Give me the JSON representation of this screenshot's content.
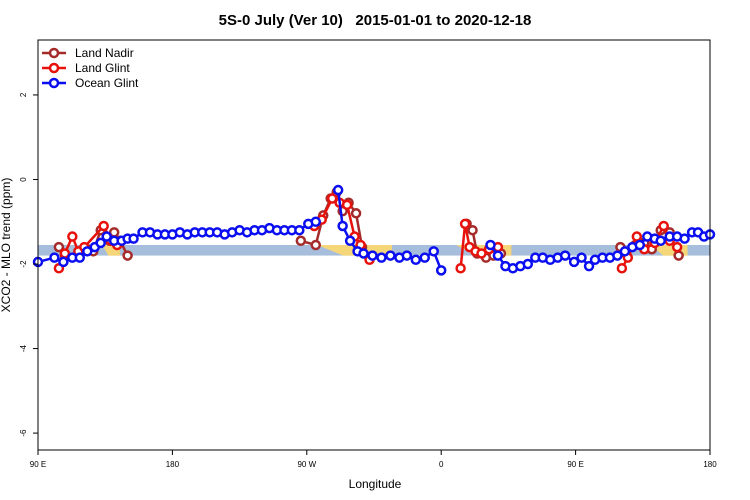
{
  "chart_data": {
    "type": "line",
    "title": "5S-0 July (Ver 10)   2015-01-01 to 2020-12-18",
    "xlabel": "Longitude",
    "ylabel": "XCO2 - MLO trend (ppm)",
    "xlim": [
      -90,
      360
    ],
    "ylim": [
      -6.4,
      3.3
    ],
    "x_ticks": [
      {
        "value": -90,
        "label": "90 E"
      },
      {
        "value": 0,
        "label": "180"
      },
      {
        "value": 90,
        "label": "90 W"
      },
      {
        "value": 180,
        "label": "0"
      },
      {
        "value": 270,
        "label": "90 E"
      },
      {
        "value": 360,
        "label": "180"
      }
    ],
    "y_ticks": [
      {
        "value": 2,
        "label": "2"
      },
      {
        "value": 0,
        "label": "0"
      },
      {
        "value": -2,
        "label": "-2"
      },
      {
        "value": -4,
        "label": "-4"
      },
      {
        "value": -6,
        "label": "-6"
      }
    ],
    "legend_position": "top-left",
    "reference_band": {
      "y_low": -1.8,
      "y_high": -1.55,
      "color": "#a6bddb"
    },
    "highlight_bands": [
      {
        "x": [
          -47,
          -35
        ],
        "y": [
          -1.8,
          -1.55
        ]
      },
      {
        "x": [
          97,
          147
        ],
        "y": [
          -1.8,
          -1.55
        ]
      },
      {
        "x": [
          190,
          227
        ],
        "y": [
          -1.8,
          -1.55
        ]
      },
      {
        "x": [
          320,
          345
        ],
        "y": [
          -1.8,
          -1.55
        ]
      }
    ],
    "highlight_color": "#f5d77a",
    "series": [
      {
        "name": "Land Nadir",
        "color": "#a52a2a",
        "segments": [
          [
            [
              -76,
              -1.6
            ],
            [
              -72,
              -1.8
            ],
            [
              -63,
              -1.8
            ],
            [
              -57,
              -1.65
            ],
            [
              -53,
              -1.7
            ],
            [
              -48,
              -1.2
            ],
            [
              -42,
              -1.45
            ],
            [
              -39,
              -1.25
            ],
            [
              -35,
              -1.45
            ],
            [
              -30,
              -1.8
            ]
          ],
          [
            [
              86,
              -1.45
            ],
            [
              96,
              -1.55
            ],
            [
              101,
              -0.85
            ],
            [
              106,
              -0.45
            ],
            [
              110,
              -0.3
            ],
            [
              114,
              -0.75
            ],
            [
              118,
              -0.55
            ],
            [
              123,
              -0.8
            ],
            [
              127,
              -1.6
            ]
          ],
          [
            [
              197,
              -1.05
            ],
            [
              201,
              -1.2
            ],
            [
              204,
              -1.75
            ],
            [
              210,
              -1.85
            ],
            [
              215,
              -1.8
            ],
            [
              220,
              -1.75
            ]
          ],
          [
            [
              300,
              -1.6
            ],
            [
              304,
              -1.75
            ],
            [
              310,
              -1.55
            ],
            [
              316,
              -1.5
            ],
            [
              321,
              -1.65
            ],
            [
              327,
              -1.2
            ],
            [
              333,
              -1.25
            ],
            [
              339,
              -1.8
            ]
          ]
        ]
      },
      {
        "name": "Land Glint",
        "color": "#e8120c",
        "segments": [
          [
            [
              -76,
              -2.1
            ],
            [
              -72,
              -1.75
            ],
            [
              -67,
              -1.35
            ],
            [
              -63,
              -1.7
            ],
            [
              -59,
              -1.6
            ],
            [
              -46,
              -1.1
            ],
            [
              -41,
              -1.45
            ],
            [
              -37,
              -1.55
            ]
          ],
          [
            [
              95,
              -1.1
            ],
            [
              100,
              -0.95
            ],
            [
              107,
              -0.45
            ],
            [
              112,
              -0.55
            ],
            [
              117,
              -0.6
            ],
            [
              122,
              -1.35
            ],
            [
              126,
              -1.55
            ],
            [
              132,
              -1.9
            ]
          ],
          [
            [
              193,
              -2.1
            ],
            [
              196,
              -1.05
            ],
            [
              199,
              -1.6
            ],
            [
              203,
              -1.7
            ],
            [
              207,
              -1.75
            ],
            [
              212,
              -1.65
            ],
            [
              218,
              -1.6
            ]
          ],
          [
            [
              301,
              -2.1
            ],
            [
              305,
              -1.85
            ],
            [
              311,
              -1.35
            ],
            [
              316,
              -1.65
            ],
            [
              323,
              -1.5
            ],
            [
              329,
              -1.1
            ],
            [
              333,
              -1.45
            ],
            [
              338,
              -1.6
            ]
          ]
        ]
      },
      {
        "name": "Ocean Glint",
        "color": "#0a0ef0",
        "segments": [
          [
            [
              -90,
              -1.95
            ],
            [
              -79,
              -1.85
            ],
            [
              -73,
              -1.95
            ],
            [
              -67,
              -1.85
            ],
            [
              -62,
              -1.85
            ],
            [
              -57,
              -1.7
            ],
            [
              -52,
              -1.6
            ],
            [
              -48,
              -1.5
            ],
            [
              -44,
              -1.35
            ],
            [
              -39,
              -1.45
            ],
            [
              -34,
              -1.45
            ],
            [
              -30,
              -1.4
            ],
            [
              -26,
              -1.4
            ],
            [
              -20,
              -1.25
            ],
            [
              -15,
              -1.25
            ],
            [
              -10,
              -1.3
            ],
            [
              -5,
              -1.3
            ],
            [
              0,
              -1.3
            ],
            [
              5,
              -1.25
            ],
            [
              10,
              -1.3
            ],
            [
              15,
              -1.25
            ],
            [
              20,
              -1.25
            ],
            [
              25,
              -1.25
            ],
            [
              30,
              -1.25
            ],
            [
              35,
              -1.3
            ],
            [
              40,
              -1.25
            ],
            [
              45,
              -1.2
            ],
            [
              50,
              -1.25
            ],
            [
              55,
              -1.2
            ],
            [
              60,
              -1.2
            ],
            [
              65,
              -1.15
            ],
            [
              70,
              -1.2
            ],
            [
              75,
              -1.2
            ],
            [
              80,
              -1.2
            ],
            [
              85,
              -1.2
            ],
            [
              91,
              -1.05
            ],
            [
              96,
              -1.0
            ]
          ],
          [
            [
              111,
              -0.25
            ],
            [
              114,
              -1.1
            ],
            [
              119,
              -1.45
            ],
            [
              124,
              -1.7
            ],
            [
              128,
              -1.75
            ],
            [
              134,
              -1.8
            ],
            [
              140,
              -1.85
            ],
            [
              146,
              -1.8
            ],
            [
              152,
              -1.85
            ],
            [
              157,
              -1.8
            ],
            [
              163,
              -1.9
            ],
            [
              169,
              -1.85
            ],
            [
              175,
              -1.7
            ],
            [
              180,
              -2.15
            ]
          ],
          [
            [
              213,
              -1.55
            ],
            [
              218,
              -1.8
            ],
            [
              223,
              -2.05
            ],
            [
              228,
              -2.1
            ],
            [
              233,
              -2.05
            ],
            [
              238,
              -2.0
            ],
            [
              243,
              -1.85
            ],
            [
              248,
              -1.85
            ],
            [
              253,
              -1.9
            ],
            [
              258,
              -1.85
            ],
            [
              263,
              -1.8
            ],
            [
              269,
              -1.95
            ],
            [
              274,
              -1.85
            ],
            [
              279,
              -2.05
            ],
            [
              283,
              -1.9
            ],
            [
              288,
              -1.85
            ],
            [
              293,
              -1.85
            ],
            [
              298,
              -1.8
            ],
            [
              303,
              -1.7
            ],
            [
              308,
              -1.6
            ],
            [
              313,
              -1.55
            ],
            [
              318,
              -1.35
            ],
            [
              323,
              -1.4
            ],
            [
              327,
              -1.45
            ],
            [
              333,
              -1.35
            ],
            [
              338,
              -1.35
            ],
            [
              343,
              -1.4
            ],
            [
              348,
              -1.25
            ],
            [
              352,
              -1.25
            ],
            [
              356,
              -1.35
            ],
            [
              360,
              -1.3
            ]
          ]
        ]
      }
    ]
  }
}
